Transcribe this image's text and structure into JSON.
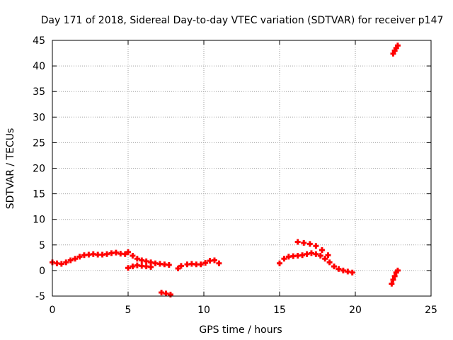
{
  "chart_data": {
    "type": "scatter",
    "title": "Day 171 of 2018, Sidereal Day-to-day VTEC variation (SDTVAR) for receiver p147",
    "xlabel": "GPS time / hours",
    "ylabel": "SDTVAR / TECUs",
    "xlim": [
      0,
      25
    ],
    "ylim": [
      -5,
      45
    ],
    "xticks": [
      0,
      5,
      10,
      15,
      20,
      25
    ],
    "yticks": [
      -5,
      0,
      5,
      10,
      15,
      20,
      25,
      30,
      35,
      40,
      45
    ],
    "grid": true,
    "marker": "plus",
    "color": "#ff0000",
    "series": [
      {
        "name": "SDTVAR",
        "points": [
          [
            0.0,
            1.6
          ],
          [
            0.3,
            1.4
          ],
          [
            0.6,
            1.3
          ],
          [
            0.9,
            1.6
          ],
          [
            1.2,
            2.0
          ],
          [
            1.5,
            2.3
          ],
          [
            1.8,
            2.7
          ],
          [
            2.1,
            3.0
          ],
          [
            2.4,
            3.1
          ],
          [
            2.7,
            3.2
          ],
          [
            3.0,
            3.1
          ],
          [
            3.3,
            3.1
          ],
          [
            3.6,
            3.2
          ],
          [
            3.9,
            3.4
          ],
          [
            4.2,
            3.5
          ],
          [
            4.5,
            3.3
          ],
          [
            4.8,
            3.2
          ],
          [
            5.0,
            3.6
          ],
          [
            5.3,
            2.9
          ],
          [
            5.6,
            2.3
          ],
          [
            5.9,
            2.0
          ],
          [
            6.2,
            1.8
          ],
          [
            6.5,
            1.6
          ],
          [
            6.8,
            1.4
          ],
          [
            7.1,
            1.3
          ],
          [
            7.4,
            1.2
          ],
          [
            7.7,
            1.1
          ],
          [
            5.0,
            0.5
          ],
          [
            5.3,
            0.8
          ],
          [
            5.6,
            1.0
          ],
          [
            5.9,
            0.9
          ],
          [
            6.2,
            0.8
          ],
          [
            6.5,
            0.7
          ],
          [
            7.2,
            -4.3
          ],
          [
            7.5,
            -4.5
          ],
          [
            7.8,
            -4.7
          ],
          [
            8.3,
            0.4
          ],
          [
            8.5,
            0.9
          ],
          [
            8.9,
            1.2
          ],
          [
            9.2,
            1.3
          ],
          [
            9.5,
            1.2
          ],
          [
            9.8,
            1.2
          ],
          [
            10.1,
            1.5
          ],
          [
            10.4,
            1.9
          ],
          [
            10.7,
            2.0
          ],
          [
            11.0,
            1.4
          ],
          [
            15.0,
            1.4
          ],
          [
            15.3,
            2.3
          ],
          [
            15.6,
            2.7
          ],
          [
            15.9,
            2.8
          ],
          [
            16.2,
            2.9
          ],
          [
            16.5,
            3.0
          ],
          [
            16.8,
            3.2
          ],
          [
            17.1,
            3.4
          ],
          [
            17.4,
            3.2
          ],
          [
            17.7,
            2.9
          ],
          [
            18.0,
            2.3
          ],
          [
            18.3,
            1.6
          ],
          [
            18.6,
            0.8
          ],
          [
            18.9,
            0.3
          ],
          [
            19.2,
            0.0
          ],
          [
            19.5,
            -0.2
          ],
          [
            19.8,
            -0.4
          ],
          [
            16.2,
            5.6
          ],
          [
            16.6,
            5.4
          ],
          [
            17.0,
            5.2
          ],
          [
            17.4,
            4.8
          ],
          [
            17.8,
            4.0
          ],
          [
            18.2,
            3.0
          ],
          [
            22.4,
            -2.6
          ],
          [
            22.5,
            -1.8
          ],
          [
            22.6,
            -1.1
          ],
          [
            22.7,
            -0.4
          ],
          [
            22.8,
            0.0
          ],
          [
            22.5,
            42.4
          ],
          [
            22.6,
            43.0
          ],
          [
            22.7,
            43.5
          ],
          [
            22.8,
            44.0
          ]
        ]
      }
    ]
  }
}
